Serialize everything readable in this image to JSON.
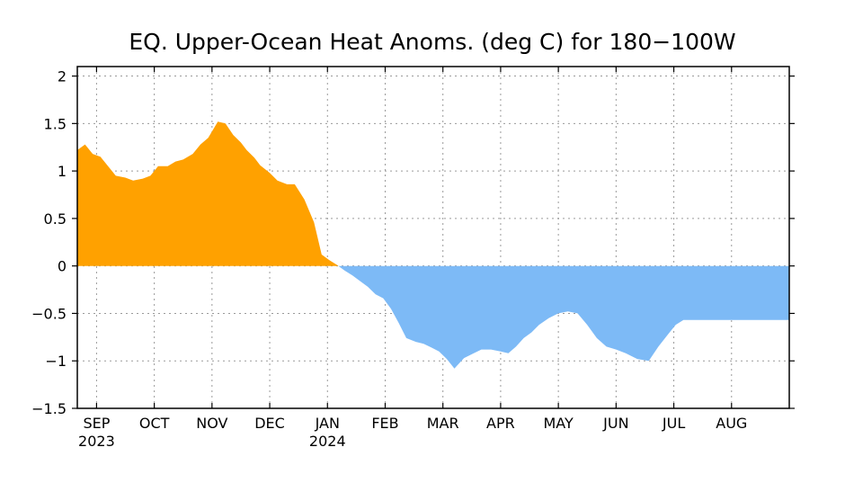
{
  "chart_data": {
    "type": "area",
    "title": "EQ. Upper-Ocean Heat Anoms. (deg C) for 180−100W",
    "xlabel": "",
    "ylabel": "",
    "ylim": [
      -1.5,
      2.1
    ],
    "yticks": [
      2,
      1.5,
      1,
      0.5,
      0,
      -0.5,
      -1,
      -1.5
    ],
    "ytick_labels": [
      "2",
      "1.5",
      "1",
      "0.5",
      "0",
      "−0.5",
      "−1",
      "−1.5"
    ],
    "xlim": [
      "2023-08-27",
      "2024-08-31"
    ],
    "xticks": [
      {
        "date": "2023-09-06",
        "label": "SEP",
        "sublabel": "2023"
      },
      {
        "date": "2023-10-06",
        "label": "OCT",
        "sublabel": ""
      },
      {
        "date": "2023-11-05",
        "label": "NOV",
        "sublabel": ""
      },
      {
        "date": "2023-12-05",
        "label": "DEC",
        "sublabel": ""
      },
      {
        "date": "2024-01-04",
        "label": "JAN",
        "sublabel": "2024"
      },
      {
        "date": "2024-02-03",
        "label": "FEB",
        "sublabel": ""
      },
      {
        "date": "2024-03-04",
        "label": "MAR",
        "sublabel": ""
      },
      {
        "date": "2024-04-03",
        "label": "APR",
        "sublabel": ""
      },
      {
        "date": "2024-05-03",
        "label": "MAY",
        "sublabel": ""
      },
      {
        "date": "2024-06-02",
        "label": "JUN",
        "sublabel": ""
      },
      {
        "date": "2024-07-02",
        "label": "JUL",
        "sublabel": ""
      },
      {
        "date": "2024-08-01",
        "label": "AUG",
        "sublabel": ""
      }
    ],
    "grid": true,
    "positive_color": "#FFA100",
    "negative_color": "#7DBAF6",
    "series": [
      {
        "x": [
          "2023-08-27",
          "2023-08-31",
          "2023-09-04",
          "2023-09-08",
          "2023-09-12",
          "2023-09-16",
          "2023-09-21",
          "2023-09-25",
          "2023-09-30",
          "2023-10-04",
          "2023-10-08",
          "2023-10-13",
          "2023-10-17",
          "2023-10-21",
          "2023-10-26",
          "2023-10-30",
          "2023-11-03",
          "2023-11-08",
          "2023-11-12",
          "2023-11-16",
          "2023-11-20",
          "2023-11-23",
          "2023-11-27",
          "2023-11-30",
          "2023-12-05",
          "2023-12-09",
          "2023-12-14",
          "2023-12-18",
          "2023-12-23",
          "2023-12-28",
          "2024-01-01",
          "2024-01-05",
          "2024-01-09",
          "2024-01-13",
          "2024-01-17",
          "2024-01-21",
          "2024-01-25",
          "2024-01-29",
          "2024-02-02",
          "2024-02-06",
          "2024-02-10",
          "2024-02-14",
          "2024-02-19",
          "2024-02-23",
          "2024-02-27",
          "2024-03-02",
          "2024-03-06",
          "2024-03-10",
          "2024-03-15",
          "2024-03-20",
          "2024-03-24",
          "2024-03-29",
          "2024-04-03",
          "2024-04-07",
          "2024-04-11",
          "2024-04-15",
          "2024-04-19",
          "2024-04-23",
          "2024-04-28",
          "2024-05-03",
          "2024-05-08",
          "2024-05-13",
          "2024-05-18",
          "2024-05-23",
          "2024-05-28",
          "2024-06-02",
          "2024-06-07",
          "2024-06-13",
          "2024-06-19",
          "2024-06-24",
          "2024-06-29",
          "2024-07-03",
          "2024-07-07",
          "2024-07-12",
          "2024-07-16",
          "2024-07-20",
          "2024-07-24",
          "2024-07-28",
          "2024-08-01",
          "2024-08-03",
          "2024-08-07",
          "2024-08-12",
          "2024-08-16",
          "2024-08-20",
          "2024-08-24"
        ],
        "values": [
          1.22,
          1.28,
          1.18,
          1.15,
          1.05,
          0.95,
          0.93,
          0.9,
          0.92,
          0.95,
          1.05,
          1.05,
          1.1,
          1.12,
          1.18,
          1.28,
          1.35,
          1.52,
          1.5,
          1.38,
          1.3,
          1.22,
          1.14,
          1.06,
          0.98,
          0.9,
          0.86,
          0.86,
          0.7,
          0.46,
          0.12,
          0.06,
          0.01,
          -0.05,
          -0.1,
          -0.16,
          -0.22,
          -0.3,
          -0.34,
          -0.45,
          -0.6,
          -0.76,
          -0.8,
          -0.82,
          -0.86,
          -0.9,
          -0.98,
          -1.08,
          -0.97,
          -0.92,
          -0.88,
          -0.88,
          -0.9,
          -0.92,
          -0.85,
          -0.76,
          -0.7,
          -0.62,
          -0.55,
          -0.5,
          -0.48,
          -0.5,
          -0.62,
          -0.76,
          -0.85,
          -0.88,
          -0.92,
          -0.98,
          -1.0,
          -0.85,
          -0.72,
          -0.62,
          -0.57,
          -0.57,
          -0.57,
          -0.57,
          -0.57,
          -0.57,
          -0.57,
          -0.57,
          -0.57,
          -0.57,
          -0.57,
          -0.57,
          -0.57
        ]
      }
    ]
  }
}
